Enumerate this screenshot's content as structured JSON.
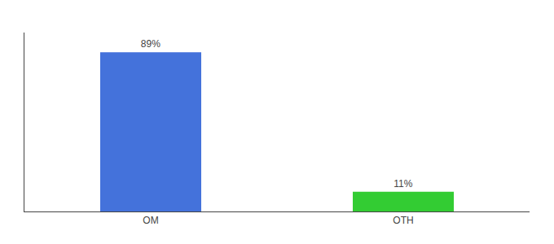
{
  "chart_data": {
    "type": "bar",
    "categories": [
      "OM",
      "OTH"
    ],
    "values": [
      89,
      11
    ],
    "value_labels": [
      "89%",
      "11%"
    ],
    "data_labels": true,
    "colors": [
      "#4472db",
      "#33cc33"
    ],
    "ylim": [
      0,
      100
    ],
    "yticks": [],
    "grid": false,
    "tick_labels": "x"
  }
}
